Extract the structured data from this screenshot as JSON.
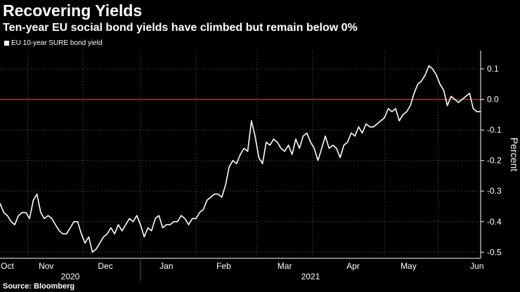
{
  "title": "Recovering Yields",
  "subtitle": "Ten-year EU social bond yields have climbed but remain below 0%",
  "source": "Source: Bloomberg",
  "chart_data": {
    "type": "line",
    "series": [
      {
        "name": "EU 10-year SURE bond yield",
        "color": "#ffffff",
        "x": [
          0,
          2,
          4,
          6,
          8,
          10,
          12,
          14,
          16,
          18,
          20,
          22,
          24,
          26,
          28,
          30,
          32,
          34,
          36,
          38,
          40,
          42,
          44,
          46,
          48,
          50,
          52,
          54,
          56,
          58,
          60,
          62,
          64,
          66,
          68,
          70,
          72,
          74,
          76,
          78,
          80,
          82,
          84,
          86,
          88,
          90,
          92,
          94,
          96,
          98,
          100,
          102,
          104,
          106,
          108,
          110,
          112,
          114,
          116,
          118,
          120,
          122,
          124,
          126,
          128,
          130,
          132,
          134,
          136,
          138,
          140,
          142,
          144,
          146,
          148,
          150,
          152,
          154,
          156,
          158,
          160,
          162,
          164,
          166,
          168,
          170,
          172,
          174,
          176,
          178,
          180,
          182,
          184,
          186,
          188,
          190,
          192,
          194,
          196,
          198,
          200,
          202,
          204,
          206,
          208,
          210,
          212,
          214,
          216,
          218,
          220,
          222,
          224,
          226,
          228,
          230,
          232,
          234,
          236,
          238,
          240,
          242,
          244,
          246,
          248,
          250,
          252,
          254,
          256,
          258,
          260
        ],
        "values": [
          -0.34,
          -0.37,
          -0.38,
          -0.4,
          -0.41,
          -0.38,
          -0.37,
          -0.37,
          -0.39,
          -0.33,
          -0.31,
          -0.37,
          -0.39,
          -0.38,
          -0.39,
          -0.41,
          -0.43,
          -0.44,
          -0.44,
          -0.42,
          -0.4,
          -0.4,
          -0.44,
          -0.47,
          -0.45,
          -0.5,
          -0.49,
          -0.47,
          -0.45,
          -0.44,
          -0.42,
          -0.44,
          -0.41,
          -0.43,
          -0.41,
          -0.39,
          -0.4,
          -0.38,
          -0.41,
          -0.45,
          -0.42,
          -0.43,
          -0.39,
          -0.38,
          -0.42,
          -0.41,
          -0.41,
          -0.4,
          -0.4,
          -0.38,
          -0.39,
          -0.41,
          -0.39,
          -0.39,
          -0.37,
          -0.36,
          -0.33,
          -0.32,
          -0.31,
          -0.31,
          -0.32,
          -0.28,
          -0.22,
          -0.2,
          -0.21,
          -0.18,
          -0.16,
          -0.17,
          -0.07,
          -0.12,
          -0.19,
          -0.21,
          -0.14,
          -0.15,
          -0.13,
          -0.14,
          -0.16,
          -0.17,
          -0.15,
          -0.18,
          -0.13,
          -0.16,
          -0.12,
          -0.11,
          -0.14,
          -0.16,
          -0.2,
          -0.16,
          -0.12,
          -0.16,
          -0.15,
          -0.16,
          -0.19,
          -0.15,
          -0.14,
          -0.11,
          -0.12,
          -0.09,
          -0.11,
          -0.08,
          -0.09,
          -0.09,
          -0.08,
          -0.07,
          -0.06,
          -0.03,
          -0.04,
          -0.03,
          -0.07,
          -0.05,
          -0.04,
          -0.02,
          0.02,
          0.05,
          0.06,
          0.08,
          0.11,
          0.1,
          0.08,
          0.05,
          0.03,
          -0.02,
          0.01,
          0.0,
          -0.01,
          -0.0,
          0.01,
          0.02,
          -0.03,
          -0.04,
          -0.04
        ],
        "xlim": [
          0,
          260
        ]
      }
    ],
    "reference_line": {
      "value": 0.0,
      "color": "#cc2233"
    },
    "xaxis_ticks": [
      {
        "label": "Oct",
        "x": 4
      },
      {
        "label": "Nov",
        "x": 25
      },
      {
        "label": "Dec",
        "x": 57
      },
      {
        "label": "Jan",
        "x": 90
      },
      {
        "label": "Feb",
        "x": 121
      },
      {
        "label": "Mar",
        "x": 154
      },
      {
        "label": "Apr",
        "x": 191
      },
      {
        "label": "May",
        "x": 221
      },
      {
        "label": "Jun",
        "x": 258
      }
    ],
    "gridlines_x": [
      15,
      45,
      76,
      106,
      139,
      169,
      208,
      237
    ],
    "year_labels": [
      {
        "label": "2020",
        "x": 38
      },
      {
        "label": "2021",
        "x": 168
      }
    ],
    "year_divider_x": 76,
    "yticks": [
      0.1,
      0.0,
      -0.1,
      -0.2,
      -0.3,
      -0.4,
      -0.5
    ],
    "ytick_labels": [
      "0.1",
      "0.0",
      "-0.1",
      "-0.2",
      "-0.3",
      "-0.4",
      "-0.5"
    ],
    "ylim": [
      -0.52,
      0.16
    ],
    "ylabel": "Percent",
    "xlabel": "",
    "grid": true,
    "legend_position": "top-left"
  }
}
